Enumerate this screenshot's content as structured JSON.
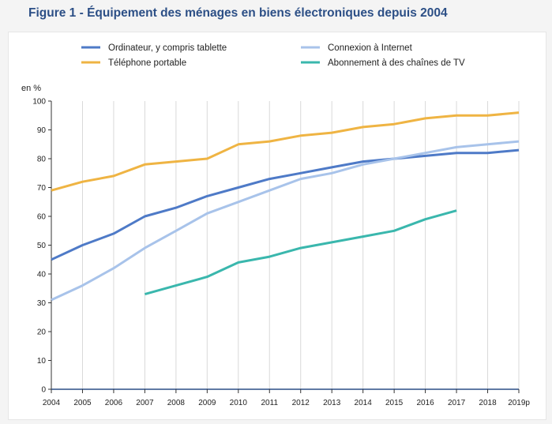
{
  "title": "Figure 1 - Équipement des ménages en biens électroniques depuis 2004",
  "chart_data": {
    "type": "line",
    "title": "Figure 1 - Équipement des ménages en biens électroniques depuis 2004",
    "ylabel": "en %",
    "xlabel": "",
    "ylim": [
      0,
      100
    ],
    "yticks": [
      0,
      10,
      20,
      30,
      40,
      50,
      60,
      70,
      80,
      90,
      100
    ],
    "categories": [
      "2004",
      "2005",
      "2006",
      "2007",
      "2008",
      "2009",
      "2010",
      "2011",
      "2012",
      "2013",
      "2014",
      "2015",
      "2016",
      "2017",
      "2018",
      "2019p"
    ],
    "grid": "vertical",
    "legend": "top",
    "series": [
      {
        "name": "Ordinateur, y compris tablette",
        "color": "#4e7ac7",
        "values": [
          45,
          50,
          54,
          60,
          63,
          67,
          70,
          73,
          75,
          77,
          79,
          80,
          81,
          82,
          82,
          83
        ]
      },
      {
        "name": "Connexion à Internet",
        "color": "#a8c3ea",
        "values": [
          31,
          36,
          42,
          49,
          55,
          61,
          65,
          69,
          73,
          75,
          78,
          80,
          82,
          84,
          85,
          86
        ]
      },
      {
        "name": "Téléphone portable",
        "color": "#efb443",
        "values": [
          69,
          72,
          74,
          78,
          79,
          80,
          85,
          86,
          88,
          89,
          91,
          92,
          94,
          95,
          95,
          96
        ]
      },
      {
        "name": "Abonnement à des chaînes de TV",
        "color": "#3ab7ad",
        "values": [
          null,
          null,
          null,
          33,
          36,
          39,
          44,
          46,
          49,
          51,
          53,
          55,
          59,
          62,
          null,
          null
        ]
      }
    ]
  }
}
